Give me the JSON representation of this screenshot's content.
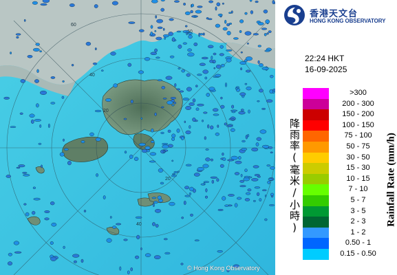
{
  "map": {
    "copyright": "© Hong Kong Observatory",
    "range_ring_labels": [
      "60",
      "60",
      "40",
      "40",
      "20",
      "20"
    ]
  },
  "header": {
    "logo_cn": "香港天文台",
    "logo_en": "HONG KONG OBSERVATORY",
    "time": "22:24 HKT",
    "date": "16-09-2025"
  },
  "legend": {
    "title_cn": "降雨率(毫米/小時)",
    "title_en": "Rainfall Rate (mm/h)",
    "items": [
      {
        "label": ">300",
        "color": "#ff00ff"
      },
      {
        "label": "200 - 300",
        "color": "#cc0099"
      },
      {
        "label": "150 - 200",
        "color": "#cc0000"
      },
      {
        "label": "100 - 150",
        "color": "#ff0000"
      },
      {
        "label": "75 - 100",
        "color": "#ff6600"
      },
      {
        "label": "50 - 75",
        "color": "#ff9900"
      },
      {
        "label": "30 - 50",
        "color": "#ffcc00"
      },
      {
        "label": "15 - 30",
        "color": "#cccc00"
      },
      {
        "label": "10 - 15",
        "color": "#99cc00"
      },
      {
        "label": "7 - 10",
        "color": "#66ff00"
      },
      {
        "label": "5 - 7",
        "color": "#33cc00"
      },
      {
        "label": "3 - 5",
        "color": "#009933"
      },
      {
        "label": "2 - 3",
        "color": "#006633"
      },
      {
        "label": "1 - 2",
        "color": "#3399ff"
      },
      {
        "label": "0.50 - 1",
        "color": "#0066ff"
      },
      {
        "label": "0.15 - 0.50",
        "color": "#00ccff"
      }
    ]
  }
}
